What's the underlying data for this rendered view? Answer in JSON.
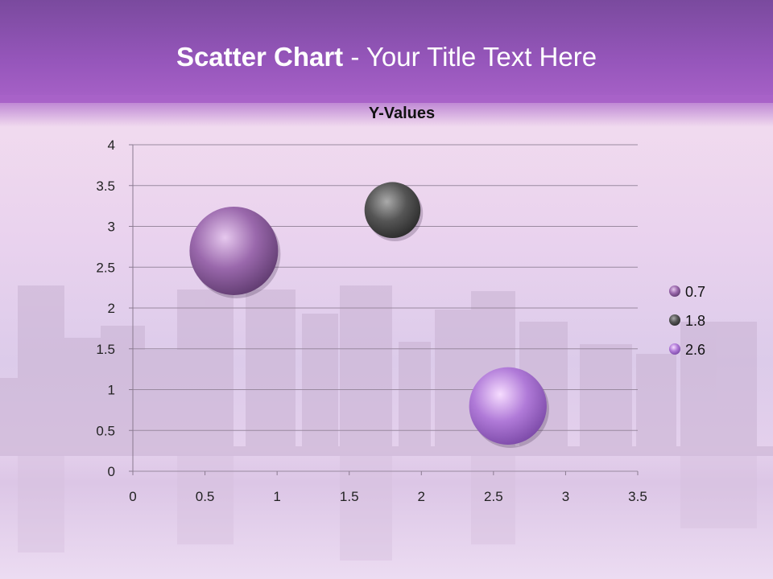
{
  "slide": {
    "title_bold": "Scatter Chart",
    "title_rest": " - Your Title Text Here"
  },
  "chart_data": {
    "type": "scatter",
    "title": "Y-Values",
    "xlim": [
      0,
      3.5
    ],
    "ylim": [
      0,
      4
    ],
    "xticks": [
      "0",
      "0.5",
      "1",
      "1.5",
      "2",
      "2.5",
      "3",
      "3.5"
    ],
    "yticks": [
      "0",
      "0.5",
      "1",
      "1.5",
      "2",
      "2.5",
      "3",
      "3.5",
      "4"
    ],
    "grid": "horizontal",
    "legend_position": "right",
    "points": [
      {
        "x": 0.7,
        "y": 2.7,
        "size": 3.0,
        "color": "#8c5a9e",
        "label": "0.7"
      },
      {
        "x": 1.8,
        "y": 3.2,
        "size": 1.2,
        "color": "#555555",
        "label": "1.8"
      },
      {
        "x": 2.6,
        "y": 0.8,
        "size": 2.3,
        "color": "#a86ad0",
        "label": "2.6"
      }
    ]
  }
}
